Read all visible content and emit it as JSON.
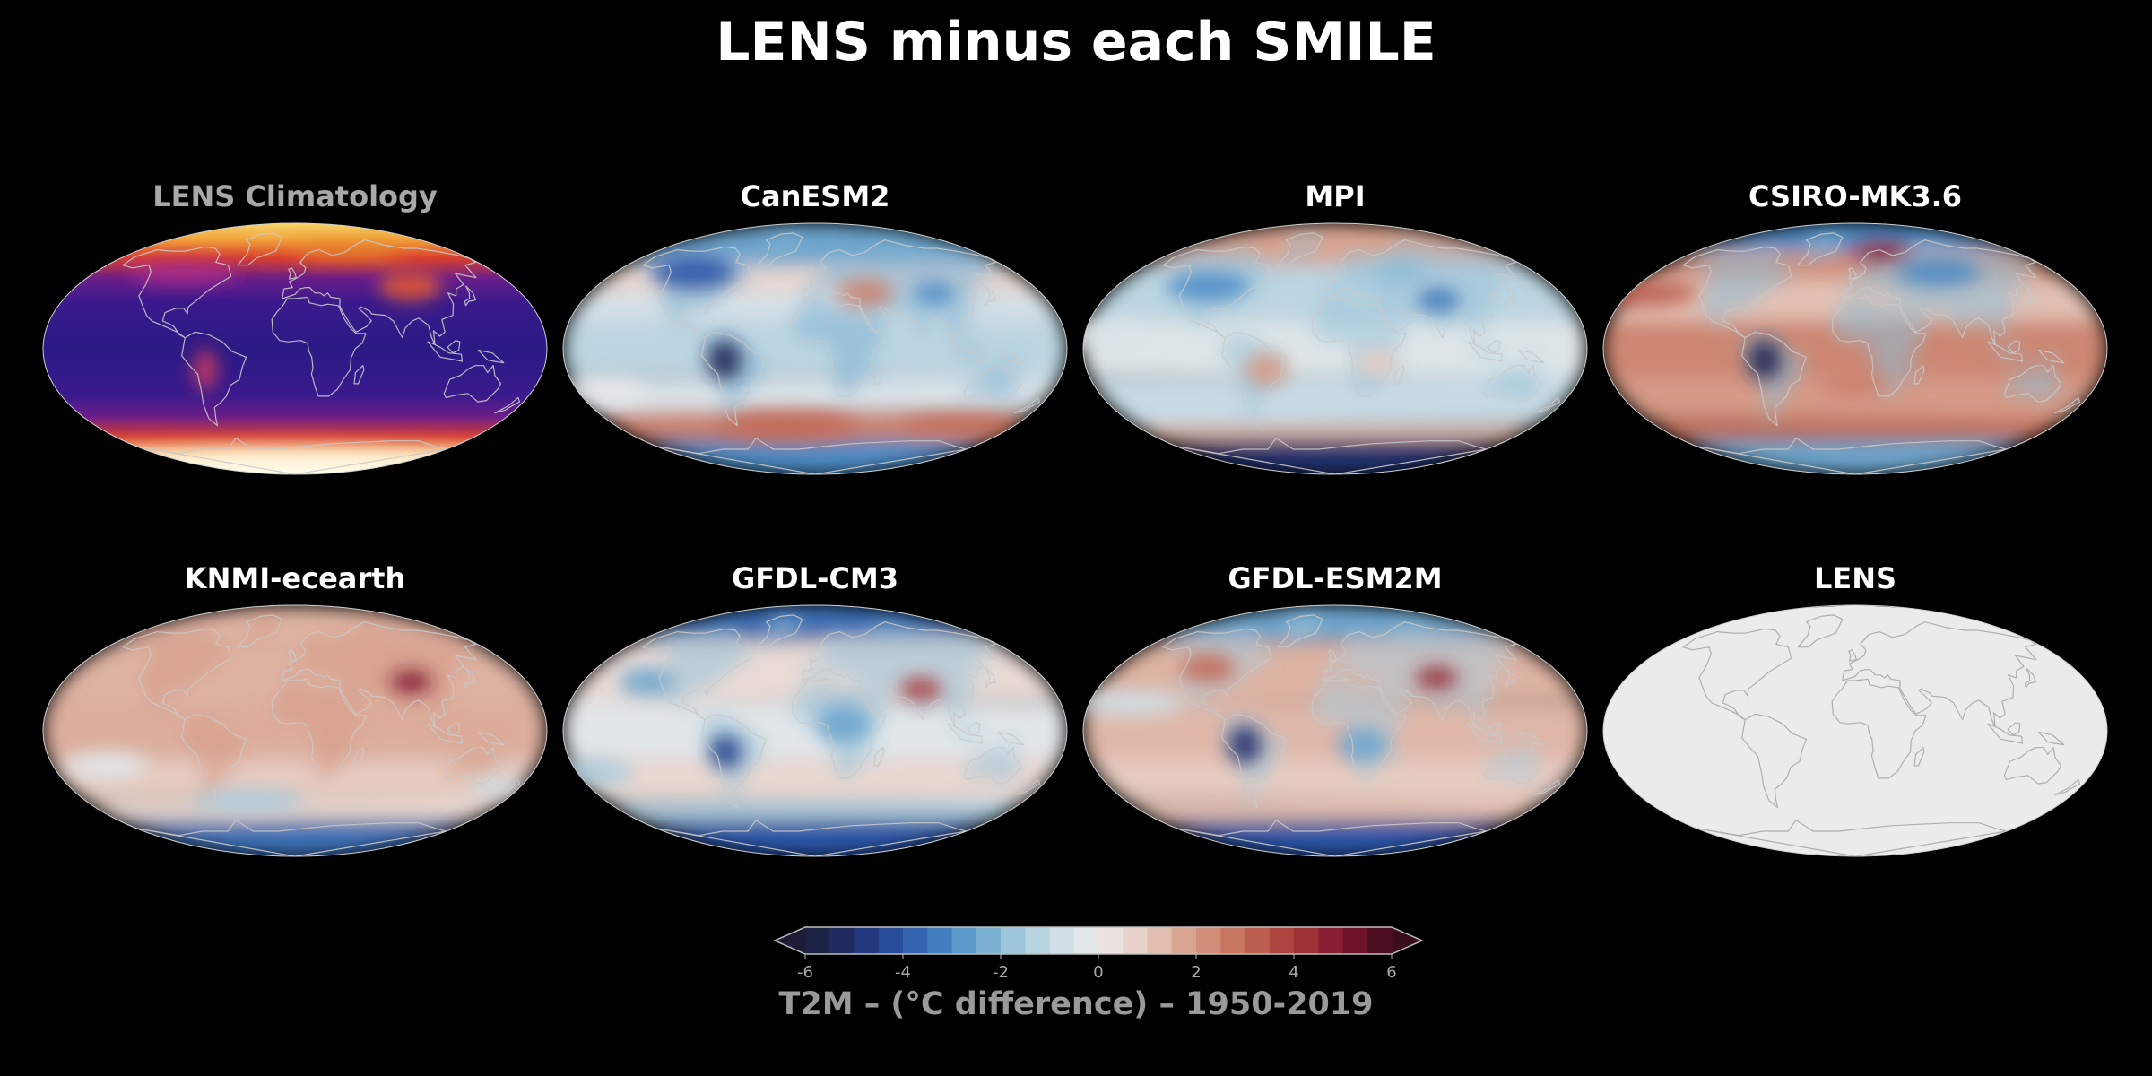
{
  "title": "LENS minus each SMILE",
  "colors": {
    "background": "#000000",
    "title_text": "#ffffff",
    "climatology_title": "#a8a8a8",
    "cbar_label": "#9a9a9a",
    "coastline": "#b9b9b9"
  },
  "panels": [
    {
      "title": "LENS Climatology",
      "scheme": "climatology"
    },
    {
      "title": "CanESM2",
      "scheme": "canesm2"
    },
    {
      "title": "MPI",
      "scheme": "mpi"
    },
    {
      "title": "CSIRO-MK3.6",
      "scheme": "csiro"
    },
    {
      "title": "KNMI-ecearth",
      "scheme": "knmi"
    },
    {
      "title": "GFDL-CM3",
      "scheme": "gfdlcm3"
    },
    {
      "title": "GFDL-ESM2M",
      "scheme": "gfdlesm2m"
    },
    {
      "title": "LENS",
      "scheme": "zero"
    }
  ],
  "colorbar": {
    "ticks": [
      "-6",
      "-4",
      "-2",
      "0",
      "2",
      "4",
      "6"
    ],
    "range": [
      -6,
      6
    ],
    "extend": "both",
    "label": "T2M – (°C difference) – 1950-2019"
  }
}
